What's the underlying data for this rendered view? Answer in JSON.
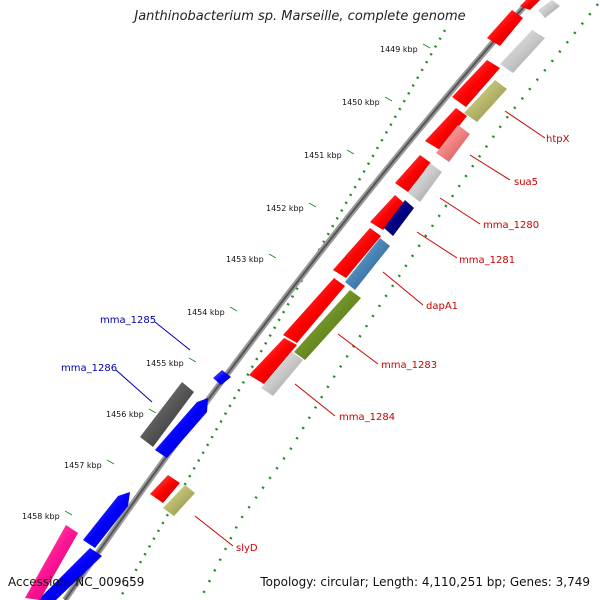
{
  "title": "Janthinobacterium sp. Marseille, complete genome",
  "footer": {
    "accession": "Accession: NC_009659",
    "summary": "Topology: circular; Length: 4,110,251 bp; Genes: 3,749"
  },
  "colors": {
    "backbone": "#808080",
    "tick": "#228b22",
    "forward_gene": "#ff0000",
    "reverse_gene_label": "#cc0000",
    "other_strand_label": "#0000aa",
    "blue_gene": "#0000ff",
    "olive_gene": "#b5b56a",
    "green_gene": "#6b8e23",
    "steelblue_gene": "#4682b4",
    "navy_gene": "#000080",
    "pink_gene": "#f08080",
    "gray_gene": "#c0c0c0",
    "darkgray_gene": "#555555",
    "magenta_gene": "#ff1493"
  },
  "kbp_ticks": [
    {
      "label": "1449 kbp"
    },
    {
      "label": "1450 kbp"
    },
    {
      "label": "1451 kbp"
    },
    {
      "label": "1452 kbp"
    },
    {
      "label": "1453 kbp"
    },
    {
      "label": "1454 kbp"
    },
    {
      "label": "1455 kbp"
    },
    {
      "label": "1456 kbp"
    },
    {
      "label": "1457 kbp"
    },
    {
      "label": "1458 kbp"
    }
  ],
  "gene_labels": {
    "htpX": "htpX",
    "sua5": "sua5",
    "mma_1280": "mma_1280",
    "mma_1281": "mma_1281",
    "dapA1": "dapA1",
    "mma_1283": "mma_1283",
    "mma_1284": "mma_1284",
    "slyD": "slyD",
    "mma_1285": "mma_1285",
    "mma_1286": "mma_1286"
  }
}
